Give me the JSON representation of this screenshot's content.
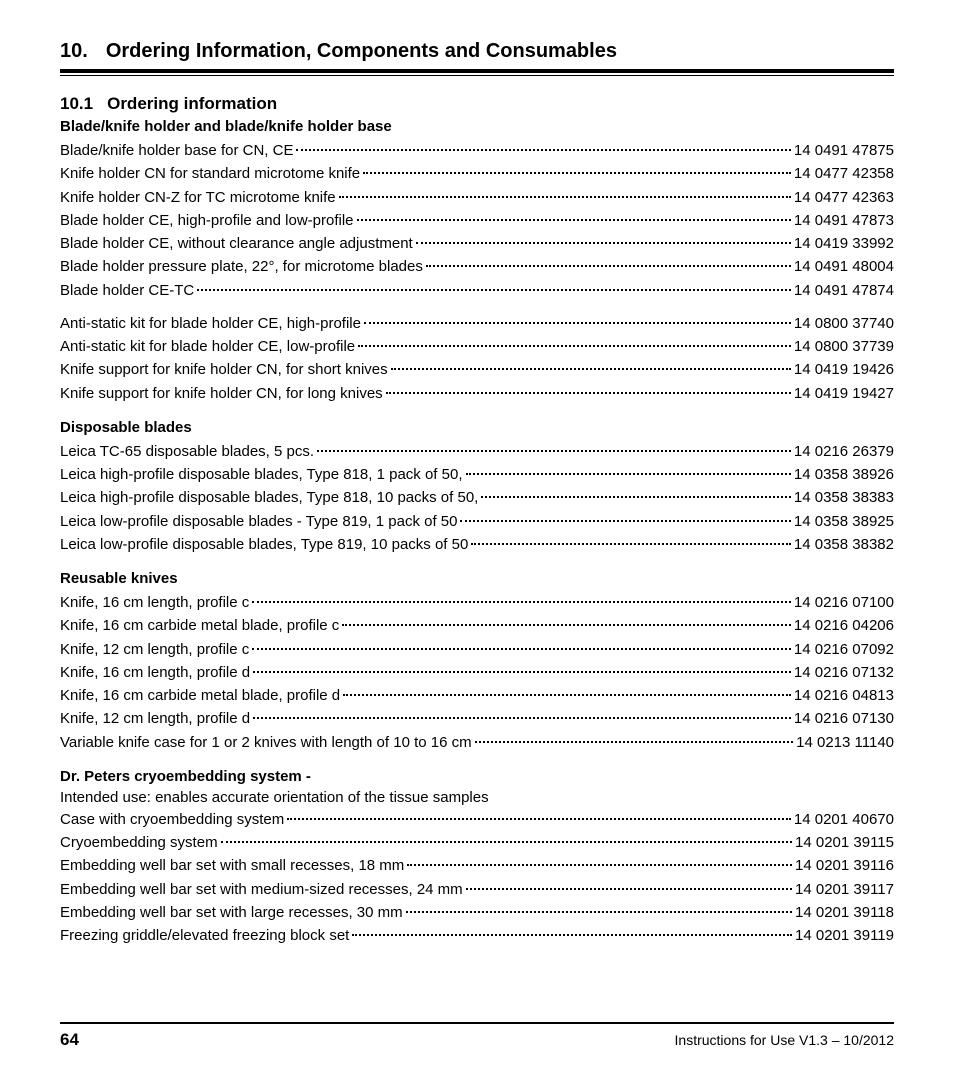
{
  "chapter": {
    "num": "10.",
    "title": "Ordering Information, Components and Consumables"
  },
  "section": {
    "num": "10.1",
    "title": "Ordering information"
  },
  "footer": {
    "page": "64",
    "text": "Instructions for Use V1.3 – 10/2012"
  },
  "groups": [
    {
      "heading": "Blade/knife holder and blade/knife holder base",
      "blocks": [
        [
          {
            "label": "Blade/knife holder base for CN, CE ",
            "part": " 14 0491 47875"
          },
          {
            "label": "Knife holder CN for standard microtome knife ",
            "part": " 14 0477 42358"
          },
          {
            "label": "Knife holder CN-Z for TC microtome knife",
            "part": " 14 0477 42363"
          },
          {
            "label": "Blade holder CE, high-profile and low-profile",
            "part": " 14 0491 47873"
          },
          {
            "label": "Blade holder CE, without clearance angle adjustment",
            "part": " 14 0419 33992"
          },
          {
            "label": "Blade holder pressure plate, 22°, for microtome blades ",
            "part": " 14 0491 48004"
          },
          {
            "label": "Blade holder CE-TC",
            "part": " 14 0491 47874"
          }
        ],
        [
          {
            "label": "Anti-static kit for blade holder CE, high-profile ",
            "part": " 14 0800 37740"
          },
          {
            "label": "Anti-static kit for blade holder CE, low-profile",
            "part": " 14 0800 37739"
          },
          {
            "label": "Knife support for knife holder CN, for short knives ",
            "part": " 14 0419 19426"
          },
          {
            "label": "Knife support for knife holder CN, for long knives ",
            "part": " 14 0419 19427"
          }
        ]
      ]
    },
    {
      "heading": "Disposable blades",
      "blocks": [
        [
          {
            "label": "Leica TC-65 disposable blades, 5 pcs. ",
            "part": " 14 0216 26379"
          },
          {
            "label": "Leica high-profile disposable blades, Type 818, 1 pack of 50, ",
            "part": " 14 0358 38926"
          },
          {
            "label": "Leica high-profile disposable blades, Type 818, 10 packs of 50, ",
            "part": " 14 0358 38383"
          },
          {
            "label": "Leica low-profile disposable blades - Type 819, 1 pack of 50 ",
            "part": " 14 0358 38925"
          },
          {
            "label": "Leica low-profile disposable blades, Type 819, 10 packs of 50",
            "part": " 14 0358 38382"
          }
        ]
      ]
    },
    {
      "heading": "Reusable knives",
      "blocks": [
        [
          {
            "label": "Knife, 16 cm length, profile c",
            "part": " 14 0216 07100"
          },
          {
            "label": "Knife, 16 cm carbide metal blade, profile c ",
            "part": " 14 0216 04206"
          },
          {
            "label": "Knife, 12 cm length, profile c",
            "part": " 14 0216 07092"
          },
          {
            "label": "Knife, 16 cm length, profile d",
            "part": " 14 0216 07132"
          },
          {
            "label": "Knife, 16 cm carbide metal blade, profile d ",
            "part": " 14 0216 04813"
          },
          {
            "label": "Knife, 12 cm length, profile d",
            "part": " 14 0216 07130"
          },
          {
            "label": "Variable knife case for 1 or 2 knives with length of 10 to 16 cm ",
            "part": " 14 0213 11140"
          }
        ]
      ]
    },
    {
      "heading": "Dr. Peters cryoembedding system -",
      "intro": "Intended use: enables accurate orientation of the tissue samples",
      "blocks": [
        [
          {
            "label": "Case with cryoembedding system ",
            "part": " 14 0201 40670"
          },
          {
            "label": "Cryoembedding system",
            "part": " 14 0201 39115"
          },
          {
            "label": "Embedding well bar set with small recesses, 18 mm ",
            "part": " 14 0201 39116"
          },
          {
            "label": "Embedding well bar set with medium-sized recesses, 24 mm",
            "part": " 14 0201 39117"
          },
          {
            "label": "Embedding well bar set with large recesses, 30 mm ",
            "part": " 14 0201 39118"
          },
          {
            "label": "Freezing griddle/elevated freezing block set ",
            "part": " 14 0201 39119"
          }
        ]
      ]
    }
  ]
}
